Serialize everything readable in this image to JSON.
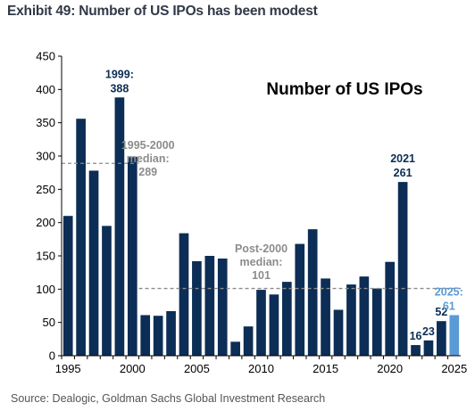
{
  "exhibit_title": "Exhibit 49: Number of US IPOs has been modest",
  "source": "Source: Dealogic, Goldman Sachs Global Investment Research",
  "colors": {
    "bar": "#0c2d55",
    "highlight": "#5b9bd5",
    "median_line": "#8c8c8c",
    "median_text": "#8c8c8c"
  },
  "chart_data": {
    "type": "bar",
    "title": "Number of US IPOs",
    "xlabel": "",
    "ylabel": "",
    "ylim": [
      0,
      450
    ],
    "yticks": [
      0,
      50,
      100,
      150,
      200,
      250,
      300,
      350,
      400,
      450
    ],
    "xticks": [
      1995,
      2000,
      2005,
      2010,
      2015,
      2020,
      2025
    ],
    "categories": [
      1995,
      1996,
      1997,
      1998,
      1999,
      2000,
      2001,
      2002,
      2003,
      2004,
      2005,
      2006,
      2007,
      2008,
      2009,
      2010,
      2011,
      2012,
      2013,
      2014,
      2015,
      2016,
      2017,
      2018,
      2019,
      2020,
      2021,
      2022,
      2023,
      2024,
      2025
    ],
    "values": [
      210,
      356,
      278,
      195,
      388,
      299,
      61,
      60,
      67,
      184,
      142,
      150,
      146,
      21,
      44,
      99,
      92,
      111,
      168,
      190,
      116,
      69,
      107,
      119,
      101,
      141,
      261,
      16,
      23,
      52,
      61
    ],
    "highlight_category": 2025,
    "annotations": [
      {
        "category": 1999,
        "lines": [
          "1999:",
          "388"
        ]
      },
      {
        "category": 2021,
        "lines": [
          "2021",
          "261"
        ]
      },
      {
        "category": 2022,
        "lines": [
          "16"
        ]
      },
      {
        "category": 2023,
        "lines": [
          "23"
        ]
      },
      {
        "category": 2024,
        "lines": [
          "52"
        ]
      },
      {
        "category": 2025,
        "lines": [
          "2025:",
          "61"
        ]
      }
    ],
    "medians": [
      {
        "value": 289,
        "from": 1995,
        "to": 2000,
        "lines": [
          "1995-2000",
          "median:",
          "289"
        ]
      },
      {
        "value": 101,
        "from": 2001,
        "to": 2025,
        "lines": [
          "Post-2000",
          "median:",
          "101"
        ]
      }
    ],
    "grid": false
  }
}
